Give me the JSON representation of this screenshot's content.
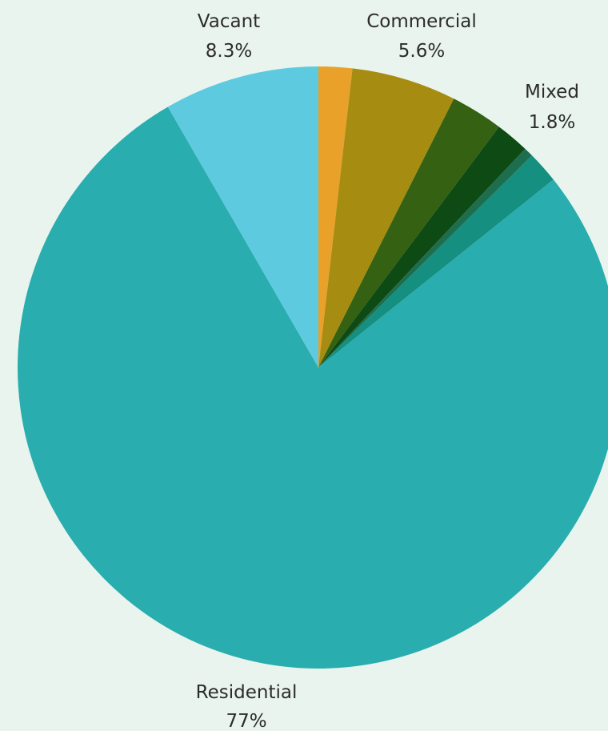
{
  "background_color": "#e9f4ee",
  "chart_data": {
    "type": "pie",
    "title": "",
    "start": "12 o'clock",
    "direction": "clockwise",
    "slices": [
      {
        "label": "",
        "value": 1.8,
        "percent_text": "",
        "color": "#e9a12a"
      },
      {
        "label": "Commercial",
        "value": 5.6,
        "percent_text": "5.6%",
        "color": "#a68d12"
      },
      {
        "label": "",
        "value": 2.8,
        "percent_text": "",
        "color": "#356112"
      },
      {
        "label": "Mixed",
        "value": 1.8,
        "percent_text": "1.8%",
        "color": "#0d4a14"
      },
      {
        "label": "",
        "value": 0.5,
        "percent_text": "",
        "color": "#1d6e4e"
      },
      {
        "label": "",
        "value": 1.7,
        "percent_text": "",
        "color": "#148f80"
      },
      {
        "label": "Residential",
        "value": 77.0,
        "percent_text": "77%",
        "color": "#29adae"
      },
      {
        "label": "Vacant",
        "value": 8.3,
        "percent_text": "8.3%",
        "color": "#5ecae0"
      }
    ]
  }
}
